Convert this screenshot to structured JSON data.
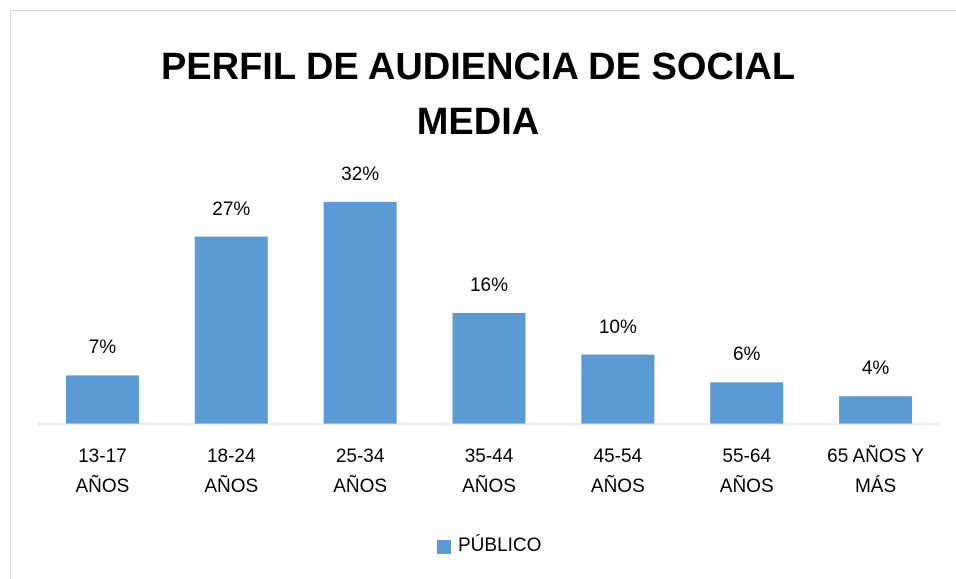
{
  "chart_data": {
    "type": "bar",
    "title": "PERFIL DE AUDIENCIA DE SOCIAL MEDIA",
    "categories": [
      "13-17 AÑOS",
      "18-24 AÑOS",
      "25-34 AÑOS",
      "35-44 AÑOS",
      "45-54 AÑOS",
      "55-64 AÑOS",
      "65 AÑOS Y MÁS"
    ],
    "series": [
      {
        "name": "PÚBLICO",
        "color": "#5b9bd5",
        "values": [
          7,
          27,
          32,
          16,
          10,
          6,
          4
        ],
        "value_labels": [
          "7%",
          "27%",
          "32%",
          "16%",
          "10%",
          "6%",
          "4%"
        ]
      }
    ],
    "ylim": [
      0,
      35
    ],
    "legend": "bottom"
  }
}
